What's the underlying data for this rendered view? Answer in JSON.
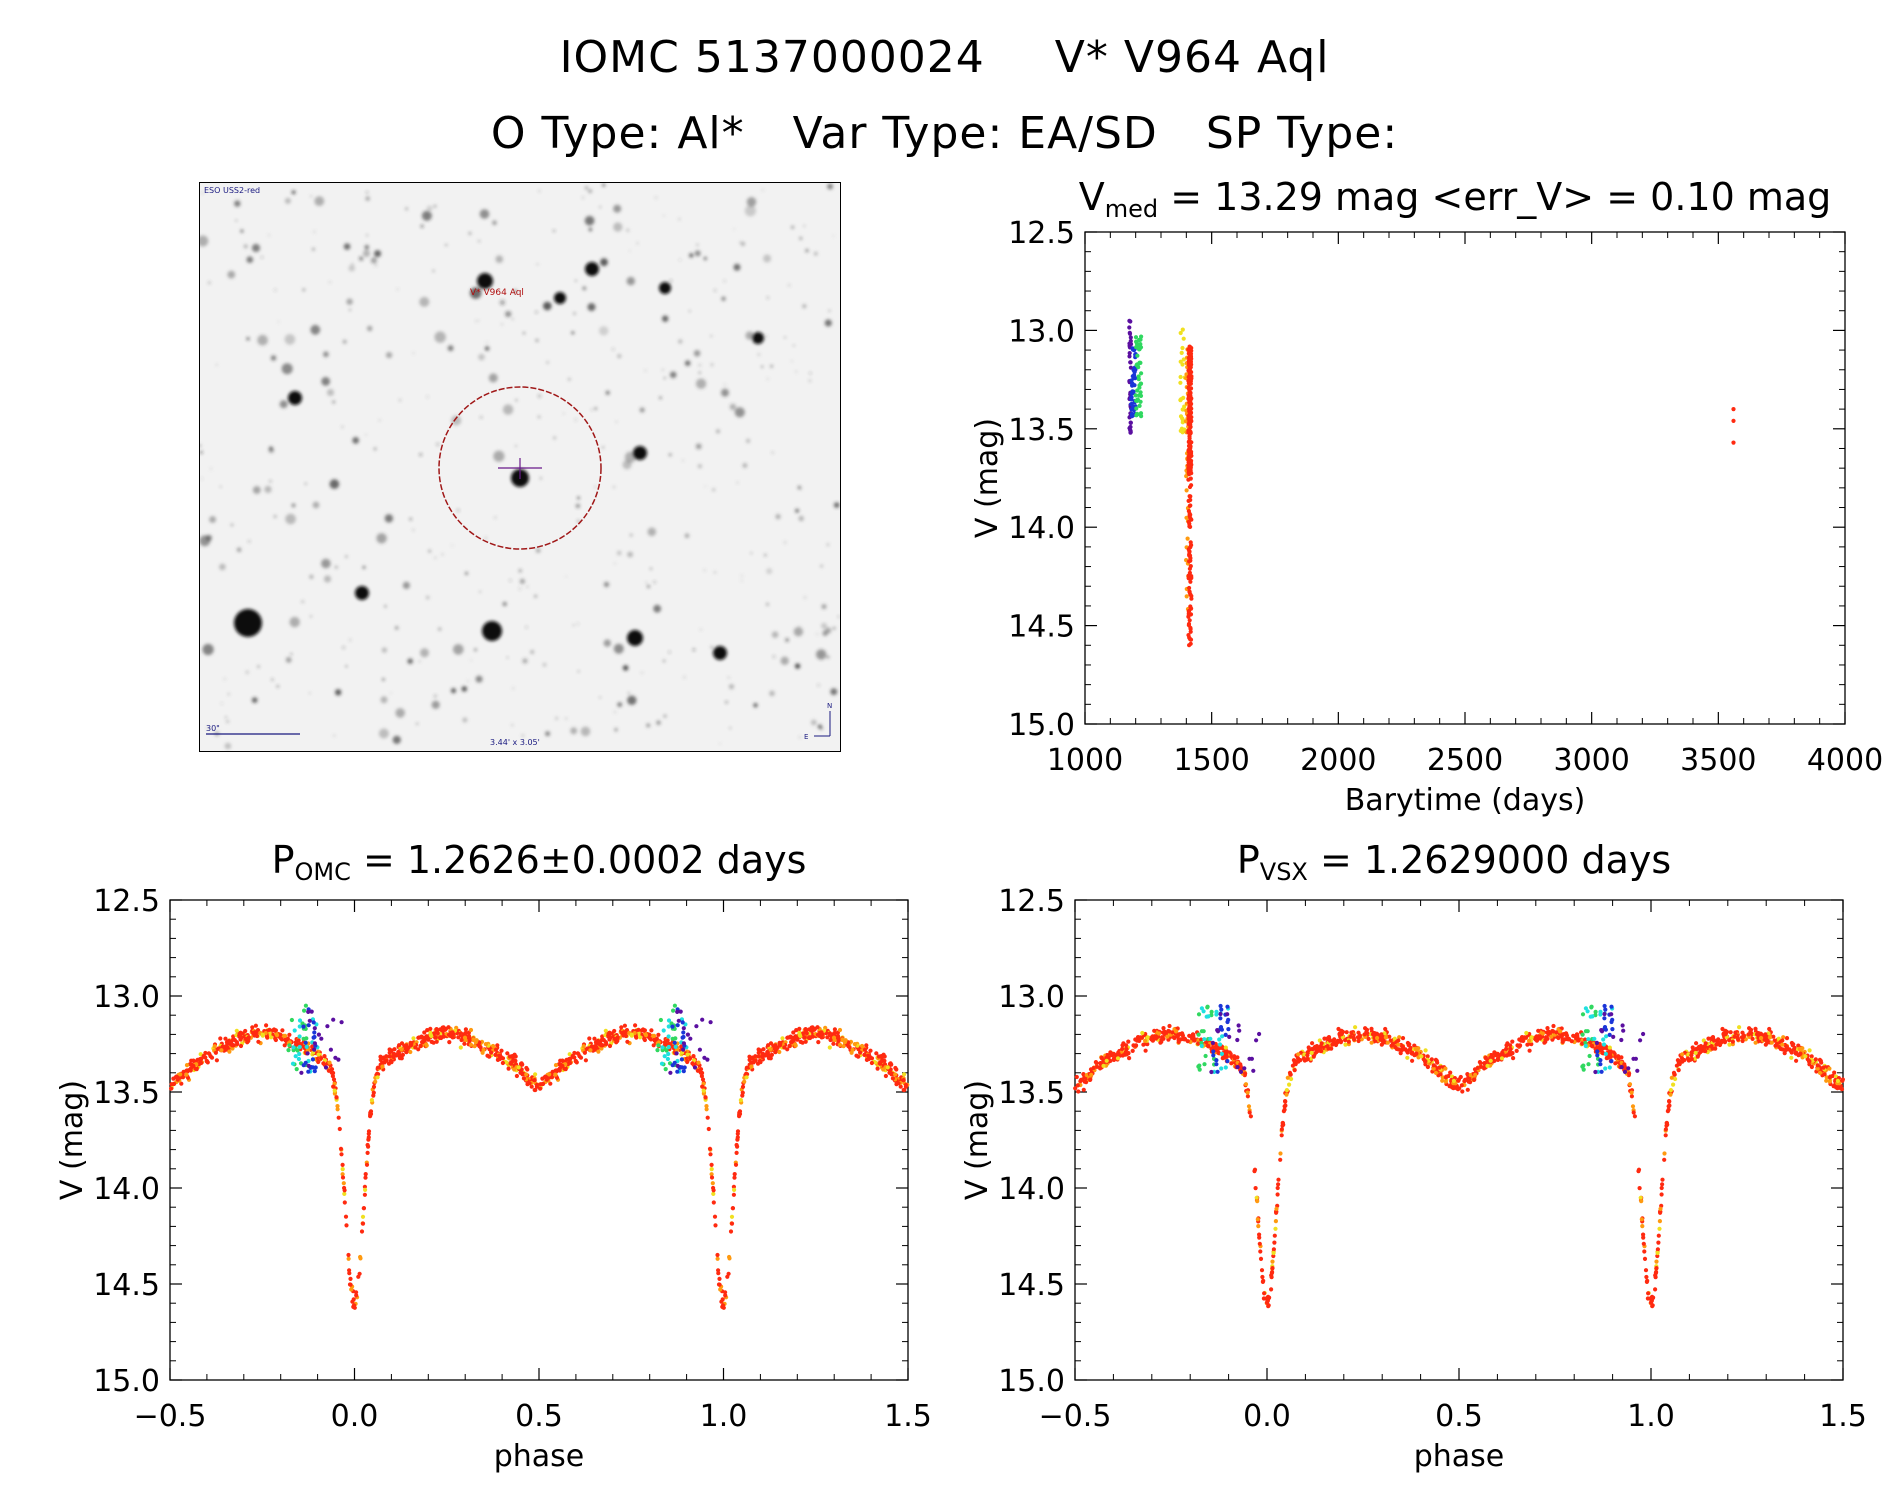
{
  "header": {
    "object_id": "IOMC 5137000024",
    "simbad_name": "V* V964 Aql",
    "o_type": "O Type: Al*",
    "var_type": "Var Type: EA/SD",
    "sp_type": "SP Type:"
  },
  "finder": {
    "survey": "ESO USS2-red",
    "target_label": "V* V964 Aql",
    "scale_bar": "30\"",
    "field_size": "3.44' x 3.05'",
    "north": "N",
    "east": "E"
  },
  "lightcurve_title": {
    "v_symbol": "V",
    "v_sub": "med",
    "text": " = 13.29 mag <err_V> = 0.10 mag"
  },
  "phase_omc_title": {
    "p": "P",
    "sub": "OMC",
    "text": " = 1.2626±0.0002 days"
  },
  "phase_vsx_title": {
    "p": "P",
    "sub": "VSX",
    "text": " = 1.2629000 days"
  },
  "colors": {
    "purple": "#5a0fa0",
    "blue": "#1a35d8",
    "cyan": "#1fe0e0",
    "green": "#30d860",
    "yellow": "#f0e020",
    "orange": "#ff9a10",
    "red": "#ff2a10"
  },
  "chart_data": [
    {
      "type": "scatter",
      "title": "V_med = 13.29 mag <err_V> = 0.10 mag",
      "xlabel": "Barytime (days)",
      "ylabel": "V (mag)",
      "xlim": [
        1000,
        4000
      ],
      "ylim": [
        15.0,
        12.5
      ],
      "y_inverted": true,
      "xticks": [
        "1000",
        "1500",
        "2000",
        "2500",
        "3000",
        "3500",
        "4000"
      ],
      "yticks": [
        "12.5",
        "13.0",
        "13.5",
        "14.0",
        "14.5",
        "15.0"
      ],
      "series": [
        {
          "color": "purple",
          "x_range": [
            1175,
            1182
          ],
          "v_range": [
            12.95,
            13.52
          ],
          "n": 40
        },
        {
          "color": "blue",
          "x_range": [
            1182,
            1200
          ],
          "v_range": [
            13.08,
            13.45
          ],
          "n": 40
        },
        {
          "color": "green",
          "x_range": [
            1200,
            1222
          ],
          "v_range": [
            13.03,
            13.44
          ],
          "n": 45
        },
        {
          "color": "yellow",
          "x_range": [
            1375,
            1395
          ],
          "v_range": [
            12.95,
            13.52
          ],
          "n": 25
        },
        {
          "color": "orange",
          "x_range": [
            1398,
            1408
          ],
          "v_range": [
            13.1,
            14.5
          ],
          "n": 45
        },
        {
          "color": "red",
          "x_range": [
            1408,
            1420
          ],
          "v_range": [
            13.08,
            14.6
          ],
          "n": 260
        },
        {
          "color": "red",
          "x": [
            3560,
            3560,
            3560
          ],
          "v": [
            13.4,
            13.46,
            13.57
          ]
        }
      ]
    },
    {
      "type": "scatter",
      "title": "P_OMC = 1.2626±0.0002 days",
      "xlabel": "phase",
      "ylabel": "V (mag)",
      "period": 1.2626,
      "xlim": [
        -0.5,
        1.5
      ],
      "ylim": [
        15.0,
        12.5
      ],
      "y_inverted": true,
      "xticks": [
        "−0.5",
        "0.0",
        "0.5",
        "1.0",
        "1.5"
      ],
      "yticks": [
        "12.5",
        "13.0",
        "13.5",
        "14.0",
        "14.5",
        "15.0"
      ],
      "curve": {
        "max_light": 13.2,
        "max_light_phases": [
          0.25,
          0.75
        ],
        "primary_min": {
          "phase": 0.0,
          "v": 14.6
        },
        "secondary_min": {
          "phase": 0.5,
          "v": 13.52
        }
      }
    },
    {
      "type": "scatter",
      "title": "P_VSX = 1.2629000 days",
      "xlabel": "phase",
      "ylabel": "V (mag)",
      "period": 1.2629,
      "xlim": [
        -0.5,
        1.5
      ],
      "ylim": [
        15.0,
        12.5
      ],
      "y_inverted": true,
      "xticks": [
        "−0.5",
        "0.0",
        "0.5",
        "1.0",
        "1.5"
      ],
      "yticks": [
        "12.5",
        "13.0",
        "13.5",
        "14.0",
        "14.5",
        "15.0"
      ],
      "curve": {
        "max_light": 13.2,
        "max_light_phases": [
          0.25,
          0.75
        ],
        "primary_min": {
          "phase": 0.0,
          "v": 14.6
        },
        "secondary_min": {
          "phase": 0.5,
          "v": 13.52
        }
      }
    }
  ]
}
